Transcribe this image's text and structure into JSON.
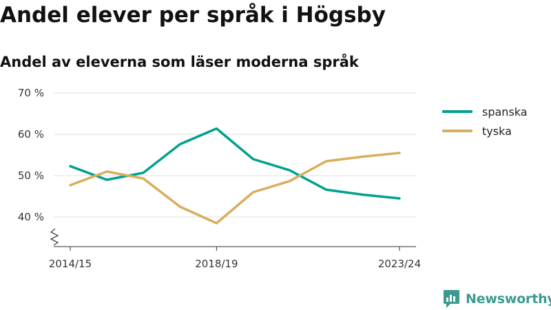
{
  "title": "Andel elever per språk i Högsby",
  "subtitle": "Andel av eleverna som läser moderna språk",
  "brand": "Newsworthy",
  "chart_data": {
    "type": "line",
    "x": [
      "2014/15",
      "2015/16",
      "2016/17",
      "2017/18",
      "2018/19",
      "2019/20",
      "2020/21",
      "2021/22",
      "2022/23",
      "2023/24"
    ],
    "x_tick_labels": [
      "2014/15",
      "2018/19",
      "2023/24"
    ],
    "y_ticks": [
      40,
      50,
      60,
      70
    ],
    "y_tick_labels": [
      "40 %",
      "50 %",
      "60 %",
      "70 %"
    ],
    "ylim": [
      33,
      70
    ],
    "y_axis_break": true,
    "grid": "horizontal",
    "legend_position": "right",
    "series": [
      {
        "name": "spanska",
        "color": "#00a08f",
        "values": [
          52.3,
          49.0,
          50.7,
          57.6,
          61.4,
          54.0,
          51.3,
          46.6,
          45.4,
          44.5
        ]
      },
      {
        "name": "tyska",
        "color": "#d9ad5b",
        "values": [
          47.7,
          51.0,
          49.3,
          42.5,
          38.5,
          46.0,
          48.7,
          53.5,
          54.6,
          55.5
        ]
      }
    ]
  }
}
